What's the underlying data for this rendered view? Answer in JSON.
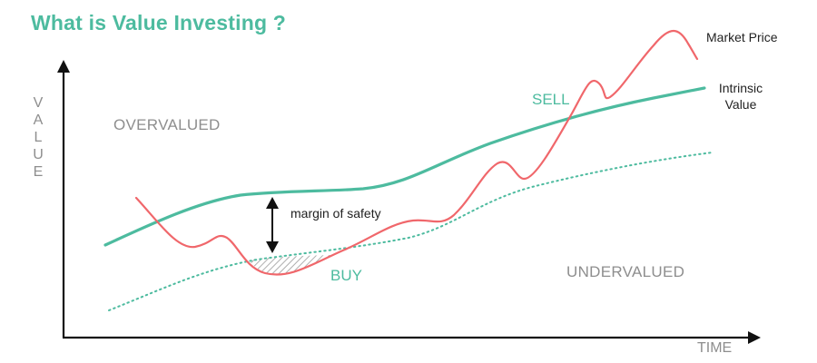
{
  "title": "What is Value Investing ?",
  "axes": {
    "y_label": "VALUE",
    "x_label": "TIME"
  },
  "regions": {
    "overvalued": "OVERVALUED",
    "undervalued": "UNDERVALUED"
  },
  "signals": {
    "sell": "SELL",
    "buy": "BUY"
  },
  "legend": {
    "market_price": "Market Price",
    "intrinsic_value": "Intrinsic Value"
  },
  "annotation": {
    "margin_of_safety": "margin of safety"
  },
  "colors": {
    "title": "#4dbb9f",
    "intrinsic": "#4dbb9f",
    "market": "#f0676b",
    "muted_text": "#8e8e8e",
    "axis": "#111111",
    "hatch": "#9a9a9a"
  }
}
